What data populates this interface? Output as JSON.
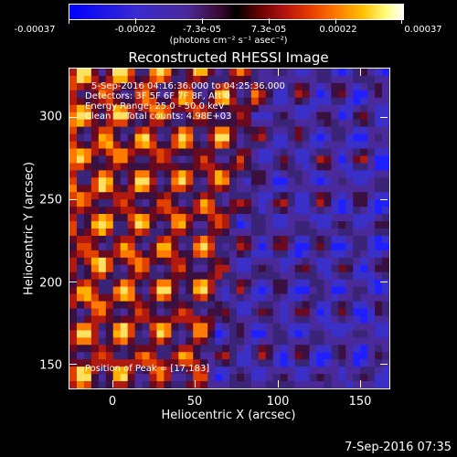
{
  "colorbar": {
    "ticks": [
      "-0.00037",
      "-0.00022",
      "-7.3e-05",
      "7.3e-05",
      "0.00022",
      "0.00037"
    ],
    "units": "(photons cm⁻² s⁻¹ asec⁻²)"
  },
  "title": "Reconstructed RHESSI Image",
  "overlay": {
    "time_range": "5-Sep-2016 04:16:36.000 to 04:25:36.000",
    "detectors": "Detectors: 3F 5F 6F 7F 8F, Att 0",
    "energy": "Energy Range: 25.0 - 50.0 keV",
    "clean": "Clean     Total counts: 4.98E+03",
    "peak": "Position of Peak = [17,183]"
  },
  "axes": {
    "xlabel": "Heliocentric X (arcsec)",
    "ylabel": "Heliocentric Y (arcsec)",
    "xticks": [
      "0",
      "50",
      "100",
      "150"
    ],
    "yticks": [
      "150",
      "200",
      "250",
      "300"
    ]
  },
  "footer": "7-Sep-2016 07:35"
}
